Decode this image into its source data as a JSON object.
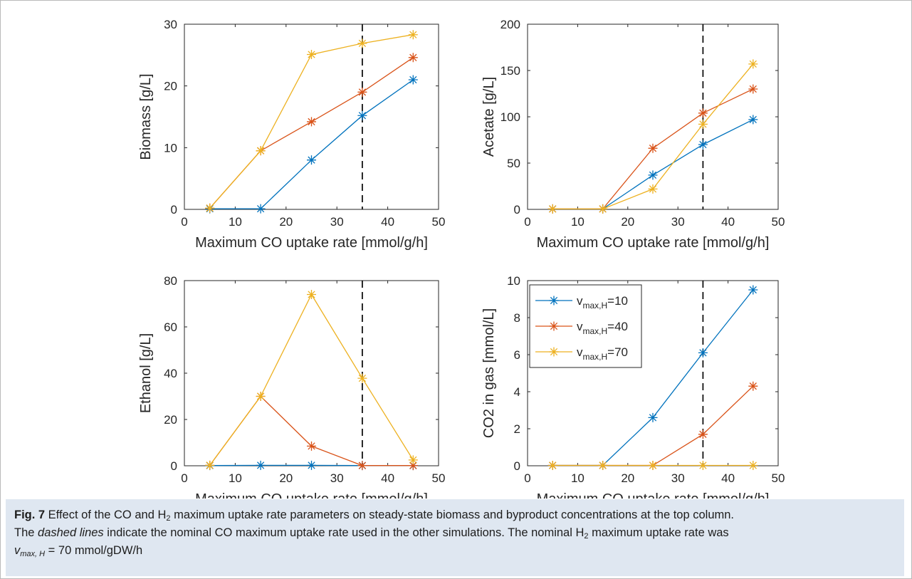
{
  "chart_data": [
    {
      "type": "line",
      "panel": "top-left",
      "ylabel": "Biomass [g/L]",
      "xlabel": "Maximum CO uptake rate [mmol/g/h]",
      "xlim": [
        0,
        50
      ],
      "ylim": [
        0,
        30
      ],
      "xticks": [
        0,
        10,
        20,
        30,
        40,
        50
      ],
      "yticks": [
        0,
        10,
        20,
        30
      ],
      "x": [
        5,
        15,
        25,
        35,
        45
      ],
      "vline": 35,
      "series": [
        {
          "color": "#0072BD",
          "values": [
            0.1,
            0.1,
            8.0,
            15.2,
            21.0
          ]
        },
        {
          "color": "#D95319",
          "values": [
            0.2,
            9.5,
            14.2,
            19.0,
            24.6
          ]
        },
        {
          "color": "#EDB120",
          "values": [
            0.2,
            9.5,
            25.1,
            26.9,
            28.3
          ]
        }
      ]
    },
    {
      "type": "line",
      "panel": "top-right",
      "ylabel": "Acetate [g/L]",
      "xlabel": "Maximum CO uptake rate [mmol/g/h]",
      "xlim": [
        0,
        50
      ],
      "ylim": [
        0,
        200
      ],
      "xticks": [
        0,
        10,
        20,
        30,
        40,
        50
      ],
      "yticks": [
        0,
        50,
        100,
        150,
        200
      ],
      "x": [
        5,
        15,
        25,
        35,
        45
      ],
      "vline": 35,
      "series": [
        {
          "color": "#0072BD",
          "values": [
            0.5,
            0.5,
            37,
            70,
            97
          ]
        },
        {
          "color": "#D95319",
          "values": [
            0.5,
            0.5,
            66,
            104,
            130
          ]
        },
        {
          "color": "#EDB120",
          "values": [
            0.5,
            0.5,
            22,
            92,
            157
          ]
        }
      ]
    },
    {
      "type": "line",
      "panel": "bottom-left",
      "ylabel": "Ethanol [g/L]",
      "xlabel": "Maximum CO uptake rate [mmol/g/h]",
      "xlim": [
        0,
        50
      ],
      "ylim": [
        0,
        80
      ],
      "xticks": [
        0,
        10,
        20,
        30,
        40,
        50
      ],
      "yticks": [
        0,
        20,
        40,
        60,
        80
      ],
      "x": [
        5,
        15,
        25,
        35,
        45
      ],
      "vline": 35,
      "series": [
        {
          "color": "#0072BD",
          "values": [
            0.1,
            0.2,
            0.2,
            0.1,
            0.1
          ]
        },
        {
          "color": "#D95319",
          "values": [
            0.2,
            30,
            8.5,
            0.1,
            0.1
          ]
        },
        {
          "color": "#EDB120",
          "values": [
            0.2,
            30,
            74,
            37.8,
            2.5
          ]
        }
      ]
    },
    {
      "type": "line",
      "panel": "bottom-right",
      "ylabel": "CO2 in gas [mmol/L]",
      "xlabel": "Maximum CO uptake rate [mmol/g/h]",
      "xlim": [
        0,
        50
      ],
      "ylim": [
        0,
        10
      ],
      "xticks": [
        0,
        10,
        20,
        30,
        40,
        50
      ],
      "yticks": [
        0,
        2,
        4,
        6,
        8,
        10
      ],
      "x": [
        5,
        15,
        25,
        35,
        45
      ],
      "vline": 35,
      "legend": "top-left",
      "series": [
        {
          "name": "v_max,H=10",
          "name_main": "v",
          "name_sub": "max,H",
          "name_tail": "=10",
          "color": "#0072BD",
          "values": [
            0.02,
            0.02,
            2.6,
            6.1,
            9.5
          ]
        },
        {
          "name": "v_max,H=40",
          "name_main": "v",
          "name_sub": "max,H",
          "name_tail": "=40",
          "color": "#D95319",
          "values": [
            0.02,
            0.02,
            0.02,
            1.7,
            4.3
          ]
        },
        {
          "name": "v_max,H=70",
          "name_main": "v",
          "name_sub": "max,H",
          "name_tail": "=70",
          "color": "#EDB120",
          "values": [
            0.02,
            0.02,
            0.02,
            0.02,
            0.02
          ]
        }
      ]
    }
  ],
  "caption": {
    "label": "Fig. 7",
    "line1_a": " Effect of the CO and H",
    "line1_sub": "2",
    "line1_b": " maximum uptake rate parameters on steady-state biomass and byproduct concentrations at the top column.",
    "line2_a": "The ",
    "line2_italic": "dashed lines",
    "line2_b": " indicate the nominal CO maximum uptake rate used in the other simulations. The nominal H",
    "line2_sub": "2",
    "line2_c": " maximum uptake rate was",
    "line3_main": "v",
    "line3_sub": "max, H",
    "line3_tail": " = 70 mmol/gDW/h"
  }
}
